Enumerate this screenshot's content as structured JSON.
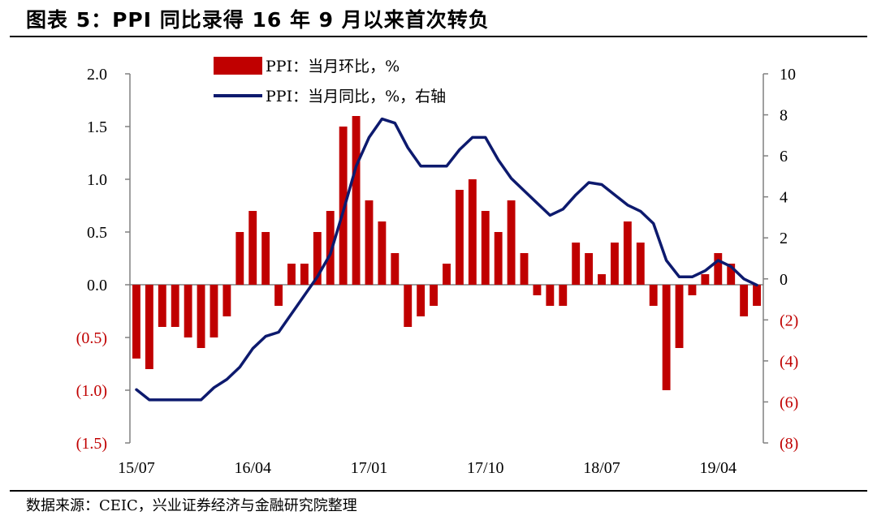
{
  "title": "图表 5：PPI 同比录得 16 年 9 月以来首次转负",
  "source": "数据来源：CEIC，兴业证券经济与金融研究院整理",
  "colors": {
    "bar": "#c00000",
    "line": "#0d1a6e",
    "negative_label": "#c00000",
    "axis": "#808080"
  },
  "chart_data": {
    "type": "bar",
    "title": "",
    "legend": {
      "placement": "top-center",
      "entries": [
        "PPI：当月环比，%",
        "PPI：当月同比，%，右轴"
      ]
    },
    "x_tick_labels": [
      "15/07",
      "16/04",
      "17/01",
      "17/10",
      "18/07",
      "19/04"
    ],
    "categories": [
      "15/07",
      "15/08",
      "15/09",
      "15/10",
      "15/11",
      "15/12",
      "16/01",
      "16/02",
      "16/03",
      "16/04",
      "16/05",
      "16/06",
      "16/07",
      "16/08",
      "16/09",
      "16/10",
      "16/11",
      "16/12",
      "17/01",
      "17/02",
      "17/03",
      "17/04",
      "17/05",
      "17/06",
      "17/07",
      "17/08",
      "17/09",
      "17/10",
      "17/11",
      "17/12",
      "18/01",
      "18/02",
      "18/03",
      "18/04",
      "18/05",
      "18/06",
      "18/07",
      "18/08",
      "18/09",
      "18/10",
      "18/11",
      "18/12",
      "19/01",
      "19/02",
      "19/03",
      "19/04",
      "19/05",
      "19/06",
      "19/07"
    ],
    "left_axis": {
      "ylim": [
        -1.5,
        2.0
      ],
      "ticks": [
        -1.5,
        -1.0,
        -0.5,
        0.0,
        0.5,
        1.0,
        1.5,
        2.0
      ],
      "tick_labels": [
        "(1.5)",
        "(1.0)",
        "(0.5)",
        "0.0",
        "0.5",
        "1.0",
        "1.5",
        "2.0"
      ]
    },
    "right_axis": {
      "ylim": [
        -8,
        10
      ],
      "ticks": [
        -8,
        -6,
        -4,
        -2,
        0,
        2,
        4,
        6,
        8,
        10
      ],
      "tick_labels": [
        "(8)",
        "(6)",
        "(4)",
        "(2)",
        "0",
        "2",
        "4",
        "6",
        "8",
        "10"
      ]
    },
    "series": [
      {
        "name": "PPI：当月环比，%",
        "type": "bar",
        "axis": "left",
        "values": [
          -0.7,
          -0.8,
          -0.4,
          -0.4,
          -0.5,
          -0.6,
          -0.5,
          -0.3,
          0.5,
          0.7,
          0.5,
          -0.2,
          0.2,
          0.2,
          0.5,
          0.7,
          1.5,
          1.6,
          0.8,
          0.6,
          0.3,
          -0.4,
          -0.3,
          -0.2,
          0.2,
          0.9,
          1.0,
          0.7,
          0.5,
          0.8,
          0.3,
          -0.1,
          -0.2,
          -0.2,
          0.4,
          0.3,
          0.1,
          0.4,
          0.6,
          0.4,
          -0.2,
          -1.0,
          -0.6,
          -0.1,
          0.1,
          0.3,
          0.2,
          -0.3,
          -0.2
        ]
      },
      {
        "name": "PPI：当月同比，%，右轴",
        "type": "line",
        "axis": "right",
        "values": [
          -5.4,
          -5.9,
          -5.9,
          -5.9,
          -5.9,
          -5.9,
          -5.3,
          -4.9,
          -4.3,
          -3.4,
          -2.8,
          -2.6,
          -1.7,
          -0.8,
          0.1,
          1.2,
          3.3,
          5.5,
          6.9,
          7.8,
          7.6,
          6.4,
          5.5,
          5.5,
          5.5,
          6.3,
          6.9,
          6.9,
          5.8,
          4.9,
          4.3,
          3.7,
          3.1,
          3.4,
          4.1,
          4.7,
          4.6,
          4.1,
          3.6,
          3.3,
          2.7,
          0.9,
          0.1,
          0.1,
          0.4,
          0.9,
          0.6,
          0.0,
          -0.3
        ]
      }
    ],
    "grid": false
  }
}
